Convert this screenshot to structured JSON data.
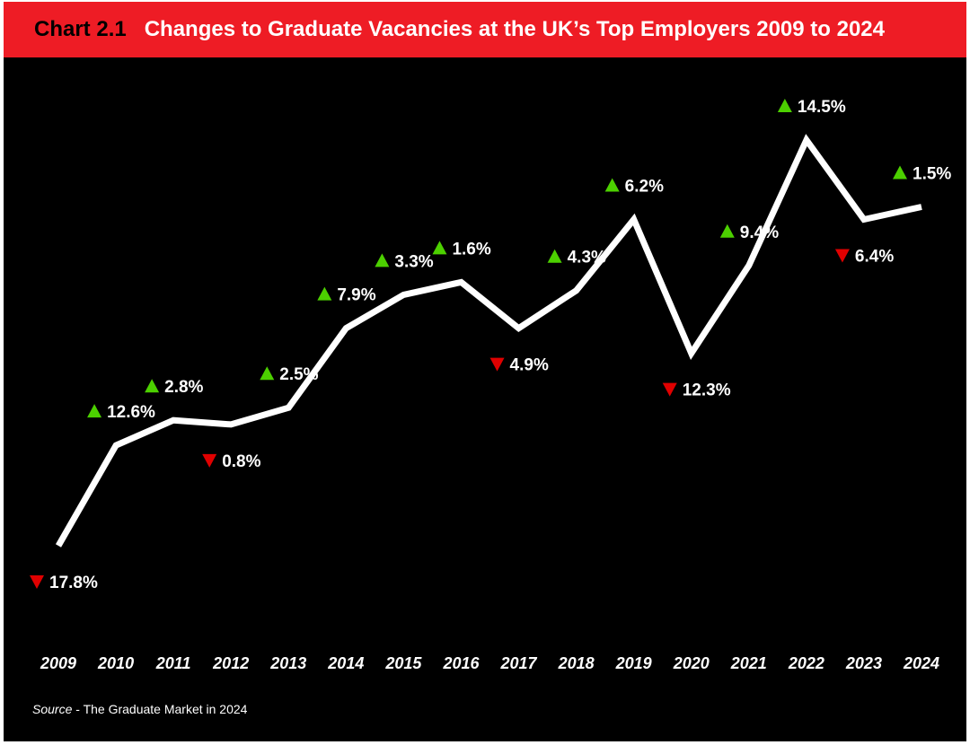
{
  "header": {
    "chart_number": "Chart 2.1",
    "title": "Changes to Graduate Vacancies at the UK’s Top Employers 2009 to 2024"
  },
  "source": {
    "label": "Source",
    "separator": " - ",
    "text": "The Graduate Market in 2024"
  },
  "colors": {
    "background": "#000000",
    "title_bar": "#ee1c25",
    "line": "#ffffff",
    "up": "#4cd000",
    "down": "#e00000"
  },
  "chart_data": {
    "type": "line",
    "x": [
      "2009",
      "2010",
      "2011",
      "2012",
      "2013",
      "2014",
      "2015",
      "2016",
      "2017",
      "2018",
      "2019",
      "2020",
      "2021",
      "2022",
      "2023",
      "2024"
    ],
    "y_relative": [
      0.0,
      0.24,
      0.3,
      0.29,
      0.33,
      0.52,
      0.6,
      0.63,
      0.52,
      0.61,
      0.78,
      0.46,
      0.67,
      0.97,
      0.78,
      0.81
    ],
    "y_note": "",
    "changes": [
      {
        "year": "2009",
        "label": "17.8%",
        "direction": "down"
      },
      {
        "year": "2010",
        "label": "12.6%",
        "direction": "up"
      },
      {
        "year": "2011",
        "label": "2.8%",
        "direction": "up"
      },
      {
        "year": "2012",
        "label": "0.8%",
        "direction": "down"
      },
      {
        "year": "2013",
        "label": "2.5%",
        "direction": "up"
      },
      {
        "year": "2014",
        "label": "7.9%",
        "direction": "up"
      },
      {
        "year": "2015",
        "label": "3.3%",
        "direction": "up"
      },
      {
        "year": "2016",
        "label": "1.6%",
        "direction": "up"
      },
      {
        "year": "2017",
        "label": "4.9%",
        "direction": "down"
      },
      {
        "year": "2018",
        "label": "4.3%",
        "direction": "up"
      },
      {
        "year": "2019",
        "label": "6.2%",
        "direction": "up"
      },
      {
        "year": "2020",
        "label": "12.3%",
        "direction": "down"
      },
      {
        "year": "2021",
        "label": "9.4%",
        "direction": "up"
      },
      {
        "year": "2022",
        "label": "14.5%",
        "direction": "up"
      },
      {
        "year": "2023",
        "label": "6.4%",
        "direction": "down"
      },
      {
        "year": "2024",
        "label": "1.5%",
        "direction": "up"
      }
    ],
    "title": "Changes to Graduate Vacancies at the UK’s Top Employers 2009 to 2024",
    "xlabel": "",
    "ylabel": "",
    "grid": false,
    "legend": "none"
  }
}
